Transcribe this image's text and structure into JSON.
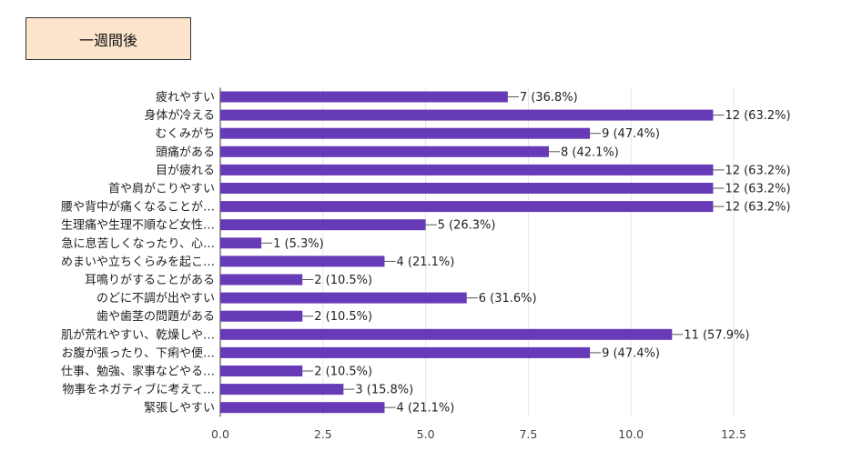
{
  "page": {
    "title": "一週間後"
  },
  "colors": {
    "bar": "#673ab7",
    "grid": "#e6e6e6",
    "title_bg": "#fce4cd"
  },
  "chart_data": {
    "type": "bar",
    "orientation": "horizontal",
    "categories": [
      "疲れやすい",
      "身体が冷える",
      "むくみがち",
      "頭痛がある",
      "目が疲れる",
      "首や肩がこりやすい",
      "腰や背中が痛くなることが…",
      "生理痛や生理不順など女性…",
      "急に息苦しくなったり、心…",
      "めまいや立ちくらみを起こ…",
      "耳鳴りがすることがある",
      "のどに不調が出やすい",
      "歯や歯茎の問題がある",
      "肌が荒れやすい、乾燥しや…",
      "お腹が張ったり、下痢や便…",
      "仕事、勉強、家事などやる…",
      "物事をネガティブに考えて…",
      "緊張しやすい"
    ],
    "values": [
      7,
      12,
      9,
      8,
      12,
      12,
      12,
      5,
      1,
      4,
      2,
      6,
      2,
      11,
      9,
      2,
      3,
      4
    ],
    "value_labels": [
      "7 (36.8%)",
      "12 (63.2%)",
      "9 (47.4%)",
      "8 (42.1%)",
      "12 (63.2%)",
      "12 (63.2%)",
      "12 (63.2%)",
      "5 (26.3%)",
      "1 (5.3%)",
      "4 (21.1%)",
      "2 (10.5%)",
      "6 (31.6%)",
      "2 (10.5%)",
      "11 (57.9%)",
      "9 (47.4%)",
      "2 (10.5%)",
      "3 (15.8%)",
      "4 (21.1%)"
    ],
    "xlim": [
      0,
      12.5
    ],
    "ticks": [
      0,
      2.5,
      5,
      7.5,
      10,
      12.5
    ],
    "tick_labels": [
      "0.0",
      "2.5",
      "5.0",
      "7.5",
      "10.0",
      "12.5"
    ],
    "grid": true,
    "title": "",
    "xlabel": "",
    "ylabel": ""
  }
}
